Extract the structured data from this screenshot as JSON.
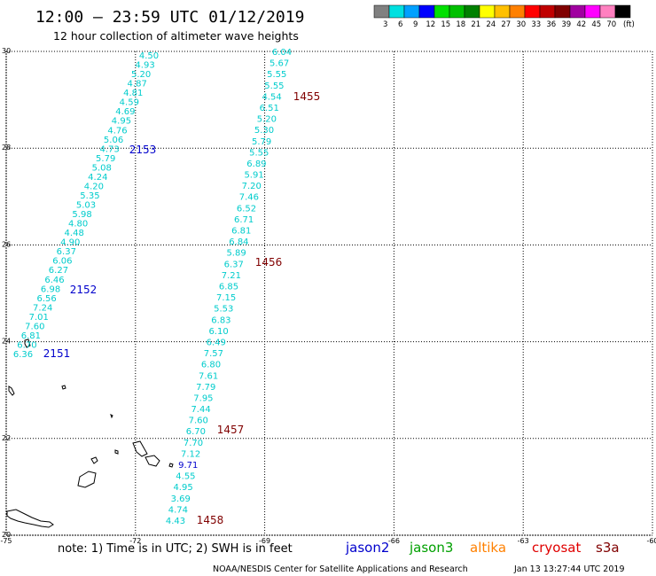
{
  "header": {
    "title": "12:00 – 23:59 UTC 01/12/2019",
    "subtitle": "12 hour collection of altimeter wave heights"
  },
  "legend": {
    "bins": [
      {
        "label": "3",
        "color": "#808080"
      },
      {
        "label": "6",
        "color": "#00e0e0"
      },
      {
        "label": "9",
        "color": "#00a0ff"
      },
      {
        "label": "12",
        "color": "#0000ff"
      },
      {
        "label": "15",
        "color": "#00e000"
      },
      {
        "label": "18",
        "color": "#00c000"
      },
      {
        "label": "21",
        "color": "#008000"
      },
      {
        "label": "24",
        "color": "#ffff00"
      },
      {
        "label": "27",
        "color": "#ffc000"
      },
      {
        "label": "30",
        "color": "#ff8000"
      },
      {
        "label": "33",
        "color": "#ff0000"
      },
      {
        "label": "36",
        "color": "#c00000"
      },
      {
        "label": "39",
        "color": "#800000"
      },
      {
        "label": "42",
        "color": "#a000a0"
      },
      {
        "label": "45",
        "color": "#ff00ff"
      },
      {
        "label": "70",
        "color": "#ff80c0"
      },
      {
        "label": "",
        "color": "#000000"
      }
    ],
    "unit": "(ft)"
  },
  "map": {
    "lon_range": [
      -75,
      -60
    ],
    "lat_range": [
      20,
      30
    ],
    "lon_ticks": [
      "-75",
      "-72",
      "-69",
      "-66",
      "-63",
      "-60"
    ],
    "lat_ticks": [
      "30",
      "28",
      "26",
      "24",
      "22",
      "20"
    ],
    "grid": "dotted"
  },
  "tracks": [
    {
      "id": "track-west",
      "values": [
        "4.50",
        "4.93",
        "5.20",
        "4.87",
        "4.81",
        "4.59",
        "4.69",
        "4.95",
        "4.76",
        "5.06",
        "4.73",
        "5.79",
        "5.08",
        "4.24",
        "4.20",
        "5.35",
        "5.03",
        "5.98",
        "4.80",
        "4.48",
        "4.90",
        "6.37",
        "6.06",
        "6.27",
        "6.46",
        "6.98",
        "6.56",
        "7.24",
        "7.01",
        "7.60",
        "6.81",
        "6.70",
        "6.36"
      ],
      "colors": [
        "#00e0e0"
      ],
      "label_values": [
        {
          "text": "2153",
          "color": "#0000cc"
        },
        {
          "text": "2152",
          "color": "#0000cc"
        },
        {
          "text": "2151",
          "color": "#0000cc"
        }
      ]
    },
    {
      "id": "track-east",
      "values": [
        "6.04",
        "5.67",
        "5.55",
        "5.55",
        "4.54",
        "6.51",
        "5.20",
        "5.30",
        "5.79",
        "5.55",
        "6.89",
        "5.91",
        "7.20",
        "7.46",
        "6.52",
        "6.71",
        "6.81",
        "6.84",
        "5.89",
        "6.37",
        "7.21",
        "6.85",
        "7.15",
        "5.53",
        "6.83",
        "6.10",
        "6.49",
        "7.57",
        "6.80",
        "7.61",
        "7.79",
        "7.95",
        "7.44",
        "7.60",
        "6.70",
        "7.70",
        "7.12",
        "9.71",
        "4.55",
        "4.95",
        "3.69",
        "4.74",
        "4.43"
      ],
      "label_values": [
        {
          "text": "1455",
          "color": "#800000"
        },
        {
          "text": "1456",
          "color": "#800000"
        },
        {
          "text": "1457",
          "color": "#800000"
        },
        {
          "text": "1458",
          "color": "#800000"
        }
      ]
    }
  ],
  "footer": {
    "note": "note: 1) Time is in UTC; 2) SWH is in feet",
    "satellites": [
      {
        "name": "jason2",
        "color": "#0000cc"
      },
      {
        "name": "jason3",
        "color": "#00a000"
      },
      {
        "name": "altika",
        "color": "#ff8000"
      },
      {
        "name": "cryosat",
        "color": "#e00000"
      },
      {
        "name": "s3a",
        "color": "#800000"
      }
    ],
    "credit": "NOAA/NESDIS Center for Satellite Applications and Research",
    "timestamp": "Jan 13 13:27:44 UTC 2019"
  }
}
